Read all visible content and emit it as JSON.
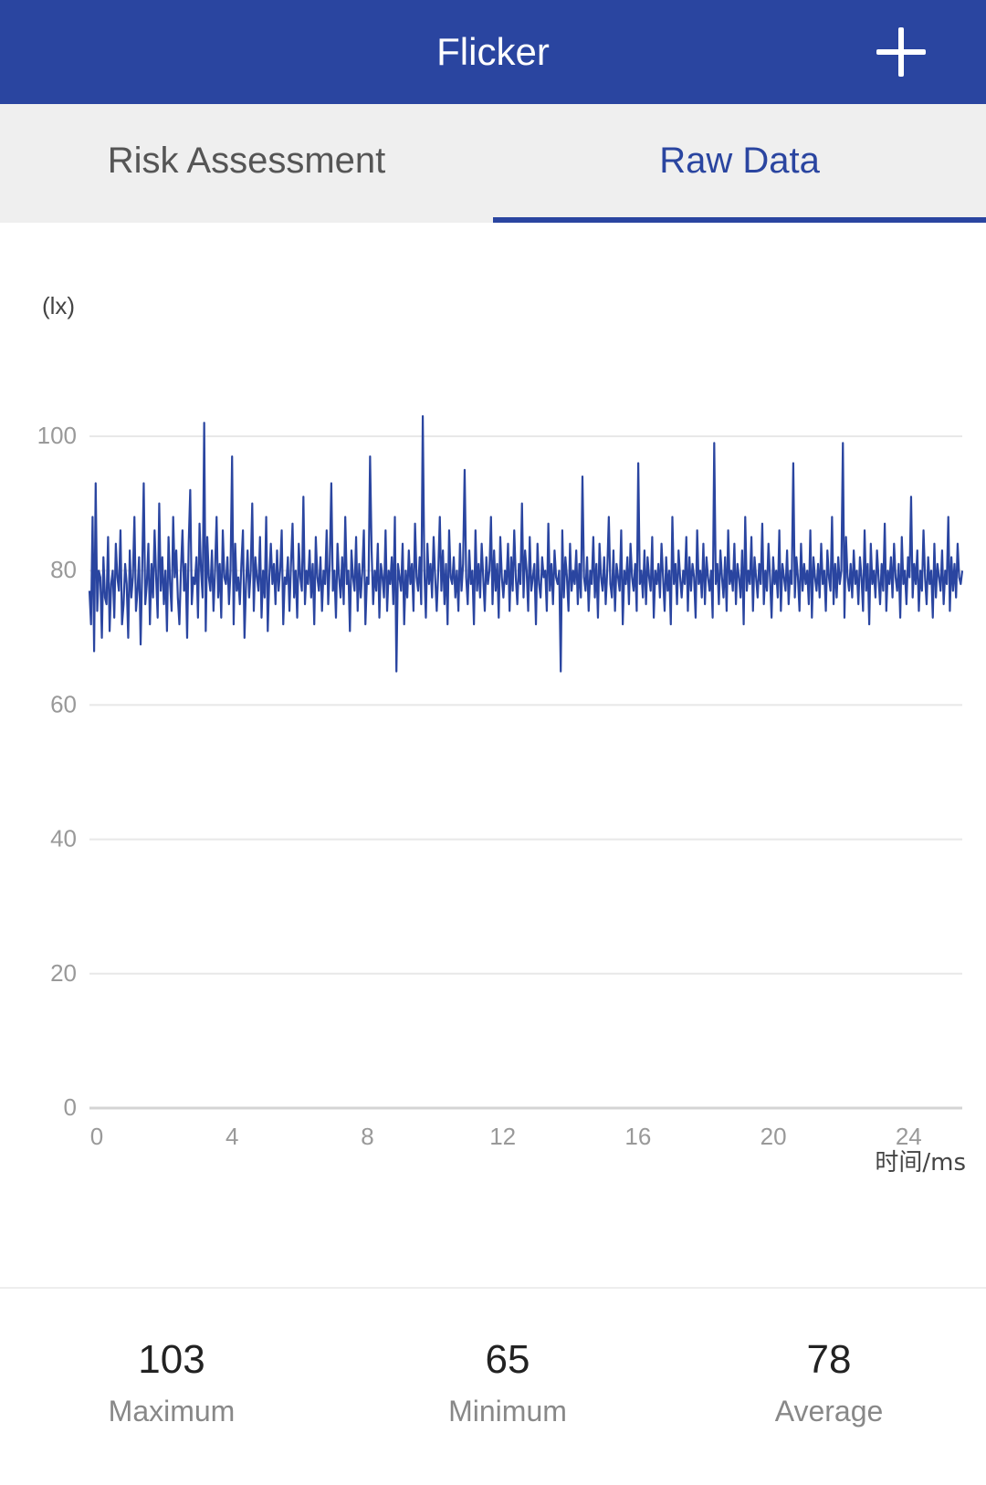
{
  "header": {
    "title": "Flicker",
    "add_icon": "plus-icon"
  },
  "tabs": [
    {
      "label": "Risk Assessment",
      "active": false
    },
    {
      "label": "Raw Data",
      "active": true
    }
  ],
  "colors": {
    "accent": "#2a45a0",
    "grid": "#e8e8e8",
    "tick": "#999999"
  },
  "chart_data": {
    "type": "line",
    "ylabel": "(lx)",
    "xlabel": "时间/ms",
    "ylim": [
      0,
      100
    ],
    "xlim": [
      0,
      25.8
    ],
    "yticks": [
      "100",
      "80",
      "60",
      "40",
      "20",
      "0"
    ],
    "xticks": [
      "0",
      "4",
      "8",
      "12",
      "16",
      "20",
      "24"
    ],
    "grid": true,
    "series": [
      {
        "values": [
          77,
          72,
          88,
          68,
          93,
          74,
          80,
          79,
          70,
          82,
          76,
          75,
          85,
          71,
          78,
          80,
          73,
          84,
          79,
          77,
          86,
          72,
          75,
          81,
          78,
          70,
          83,
          76,
          79,
          88,
          74,
          77,
          82,
          69,
          80,
          93,
          75,
          78,
          84,
          72,
          81,
          76,
          86,
          79,
          73,
          90,
          77,
          82,
          75,
          80,
          71,
          85,
          78,
          74,
          88,
          79,
          83,
          76,
          72,
          80,
          86,
          77,
          81,
          70,
          84,
          92,
          75,
          79,
          78,
          82,
          73,
          87,
          80,
          76,
          102,
          71,
          85,
          79,
          77,
          83,
          74,
          80,
          88,
          76,
          81,
          73,
          86,
          79,
          78,
          82,
          75,
          80,
          97,
          72,
          84,
          77,
          79,
          75,
          81,
          86,
          70,
          78,
          83,
          76,
          80,
          90,
          74,
          82,
          79,
          77,
          85,
          73,
          80,
          76,
          88,
          71,
          79,
          84,
          78,
          81,
          75,
          83,
          77,
          80,
          86,
          72,
          79,
          78,
          82,
          74,
          81,
          87,
          76,
          80,
          73,
          84,
          79,
          77,
          91,
          75,
          80,
          78,
          83,
          76,
          81,
          72,
          85,
          79,
          77,
          82,
          74,
          80,
          78,
          86,
          75,
          81,
          93,
          77,
          80,
          73,
          84,
          79,
          76,
          82,
          75,
          88,
          78,
          80,
          71,
          83,
          79,
          77,
          85,
          74,
          81,
          76,
          80,
          86,
          72,
          79,
          78,
          97,
          83,
          75,
          80,
          77,
          84,
          73,
          81,
          79,
          76,
          86,
          74,
          80,
          78,
          82,
          75,
          88,
          65,
          81,
          79,
          77,
          84,
          72,
          80,
          76,
          83,
          78,
          81,
          74,
          87,
          79,
          77,
          82,
          75,
          103,
          80,
          73,
          84,
          78,
          81,
          76,
          85,
          79,
          74,
          80,
          88,
          77,
          83,
          75,
          81,
          72,
          86,
          79,
          78,
          82,
          76,
          80,
          74,
          84,
          77,
          81,
          95,
          79,
          75,
          83,
          78,
          80,
          72,
          86,
          77,
          81,
          76,
          84,
          79,
          74,
          82,
          78,
          80,
          88,
          75,
          83,
          77,
          81,
          73,
          85,
          79,
          76,
          80,
          78,
          84,
          74,
          82,
          77,
          86,
          79,
          75,
          81,
          78,
          90,
          76,
          83,
          80,
          74,
          85,
          77,
          79,
          81,
          72,
          84,
          78,
          76,
          82,
          79,
          80,
          74,
          87,
          77,
          81,
          75,
          83,
          79,
          78,
          80,
          65,
          86,
          76,
          82,
          79,
          74,
          84,
          77,
          80,
          78,
          83,
          75,
          81,
          76,
          94,
          79,
          77,
          82,
          74,
          80,
          78,
          85,
          76,
          81,
          73,
          84,
          79,
          77,
          82,
          75,
          80,
          88,
          78,
          76,
          83,
          74,
          81,
          79,
          77,
          86,
          72,
          80,
          78,
          82,
          75,
          84,
          79,
          77,
          81,
          74,
          96,
          78,
          80,
          76,
          83,
          75,
          82,
          79,
          77,
          85,
          73,
          80,
          78,
          81,
          76,
          84,
          79,
          74,
          82,
          77,
          80,
          72,
          88,
          78,
          81,
          75,
          83,
          79,
          76,
          80,
          78,
          85,
          74,
          82,
          77,
          81,
          79,
          73,
          86,
          78,
          80,
          76,
          84,
          75,
          82,
          79,
          77,
          80,
          73,
          99,
          78,
          81,
          75,
          83,
          79,
          76,
          82,
          74,
          86,
          78,
          80,
          77,
          84,
          75,
          81,
          79,
          76,
          83,
          72,
          88,
          77,
          80,
          78,
          85,
          74,
          82,
          79,
          76,
          81,
          78,
          87,
          75,
          80,
          77,
          84,
          79,
          73,
          82,
          78,
          80,
          76,
          86,
          74,
          81,
          79,
          77,
          83,
          75,
          80,
          78,
          96,
          76,
          82,
          79,
          74,
          84,
          77,
          81,
          78,
          80,
          75,
          86,
          73,
          82,
          79,
          77,
          81,
          76,
          84,
          78,
          80,
          74,
          83,
          79,
          77,
          88,
          75,
          81,
          76,
          82,
          78,
          80,
          99,
          73,
          85,
          79,
          77,
          81,
          76,
          83,
          78,
          80,
          75,
          82,
          79,
          74,
          86,
          77,
          81,
          72,
          84,
          78,
          80,
          76,
          83,
          79,
          75,
          81,
          77,
          87,
          74,
          80,
          78,
          82,
          76,
          84,
          79,
          77,
          81,
          73,
          85,
          78,
          80,
          75,
          82,
          79,
          91,
          76,
          81,
          78,
          83,
          74,
          80,
          77,
          86,
          79,
          75,
          82,
          78,
          80,
          73,
          84,
          76,
          81,
          79,
          77,
          83,
          75,
          80,
          78,
          88,
          74,
          82,
          77,
          81,
          76,
          84,
          79,
          78,
          80
        ]
      }
    ]
  },
  "stats": [
    {
      "value": "103",
      "label": "Maximum"
    },
    {
      "value": "65",
      "label": "Minimum"
    },
    {
      "value": "78",
      "label": "Average"
    }
  ]
}
